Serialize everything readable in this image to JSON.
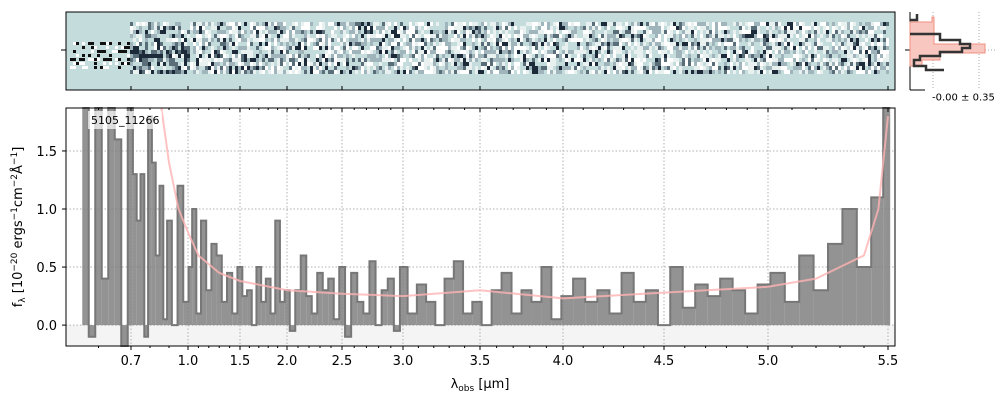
{
  "chart_data": {
    "type": "line",
    "object_label": "5105_11266",
    "xlabel": "λ_obs [μm]",
    "ylabel": "f_λ [10^-20 ergs^-1 cm^-2 Å^-1]",
    "xlim": [
      0.55,
      5.53
    ],
    "ylim": [
      -0.18,
      1.87
    ],
    "xticks": [
      "0.7",
      "1.0",
      "1.5",
      "2.0",
      "2.5",
      "3.0",
      "3.5",
      "4.0",
      "4.5",
      "5.0",
      "5.5"
    ],
    "yticks": [
      "0.0",
      "0.5",
      "1.0",
      "1.5"
    ],
    "grid": true,
    "colors": {
      "data": "#808080",
      "model": "#ffb3b3",
      "twod_bg": "#c5dcdc"
    },
    "histogram_label": "-0.00 ± 0.35",
    "series": [
      {
        "name": "data",
        "wave": [
          0.56,
          0.58,
          0.6,
          0.62,
          0.64,
          0.66,
          0.68,
          0.7,
          0.72,
          0.74,
          0.76,
          0.78,
          0.8,
          0.82,
          0.84,
          0.86,
          0.88,
          0.9,
          0.93,
          0.96,
          0.99,
          1.02,
          1.06,
          1.1,
          1.15,
          1.2,
          1.25,
          1.3,
          1.35,
          1.4,
          1.45,
          1.5,
          1.55,
          1.6,
          1.65,
          1.7,
          1.75,
          1.8,
          1.85,
          1.9,
          1.95,
          2.0,
          2.05,
          2.1,
          2.15,
          2.2,
          2.25,
          2.3,
          2.35,
          2.4,
          2.45,
          2.5,
          2.55,
          2.6,
          2.65,
          2.7,
          2.75,
          2.8,
          2.85,
          2.9,
          2.95,
          3.0,
          3.06,
          3.12,
          3.18,
          3.24,
          3.3,
          3.36,
          3.42,
          3.48,
          3.54,
          3.6,
          3.66,
          3.72,
          3.78,
          3.84,
          3.9,
          3.96,
          4.02,
          4.08,
          4.14,
          4.2,
          4.26,
          4.32,
          4.38,
          4.44,
          4.5,
          4.56,
          4.62,
          4.68,
          4.74,
          4.8,
          4.86,
          4.92,
          4.98,
          5.04,
          5.1,
          5.16,
          5.22,
          5.28,
          5.34,
          5.4,
          5.46,
          5.5
        ],
        "flux": [
          2.5,
          -0.1,
          2.5,
          0.4,
          2.5,
          1.6,
          -0.2,
          2.5,
          1.3,
          0.9,
          1.3,
          -0.1,
          1.8,
          1.4,
          0.6,
          1.2,
          0.05,
          0.9,
          0.0,
          1.2,
          0.2,
          0.5,
          1.0,
          0.1,
          0.9,
          0.3,
          0.7,
          0.6,
          0.2,
          0.45,
          0.1,
          0.5,
          0.25,
          0.3,
          0.0,
          0.5,
          0.2,
          0.4,
          0.1,
          0.9,
          0.2,
          0.3,
          -0.05,
          0.3,
          0.6,
          0.25,
          0.1,
          0.45,
          0.3,
          0.4,
          0.05,
          0.5,
          -0.1,
          0.45,
          0.2,
          0.1,
          0.55,
          0.0,
          0.3,
          0.4,
          -0.05,
          0.5,
          0.1,
          0.35,
          0.2,
          0.0,
          0.4,
          0.55,
          0.1,
          0.2,
          0.0,
          0.3,
          0.45,
          0.1,
          0.3,
          0.2,
          0.5,
          0.05,
          0.25,
          0.4,
          0.2,
          0.3,
          0.1,
          0.45,
          0.2,
          0.3,
          0.0,
          0.5,
          0.15,
          0.35,
          0.25,
          0.4,
          0.3,
          0.1,
          0.35,
          0.45,
          0.2,
          0.6,
          0.3,
          0.7,
          1.0,
          0.5,
          1.1,
          1.9
        ]
      },
      {
        "name": "model",
        "wave": [
          0.86,
          0.9,
          0.95,
          1.0,
          1.1,
          1.3,
          1.5,
          2.0,
          2.5,
          3.0,
          3.5,
          4.0,
          4.5,
          5.0,
          5.2,
          5.4,
          5.46,
          5.5
        ],
        "flux": [
          2.0,
          1.4,
          1.0,
          0.8,
          0.6,
          0.45,
          0.38,
          0.3,
          0.27,
          0.25,
          0.3,
          0.23,
          0.28,
          0.33,
          0.4,
          0.6,
          1.0,
          1.8
        ]
      }
    ]
  }
}
